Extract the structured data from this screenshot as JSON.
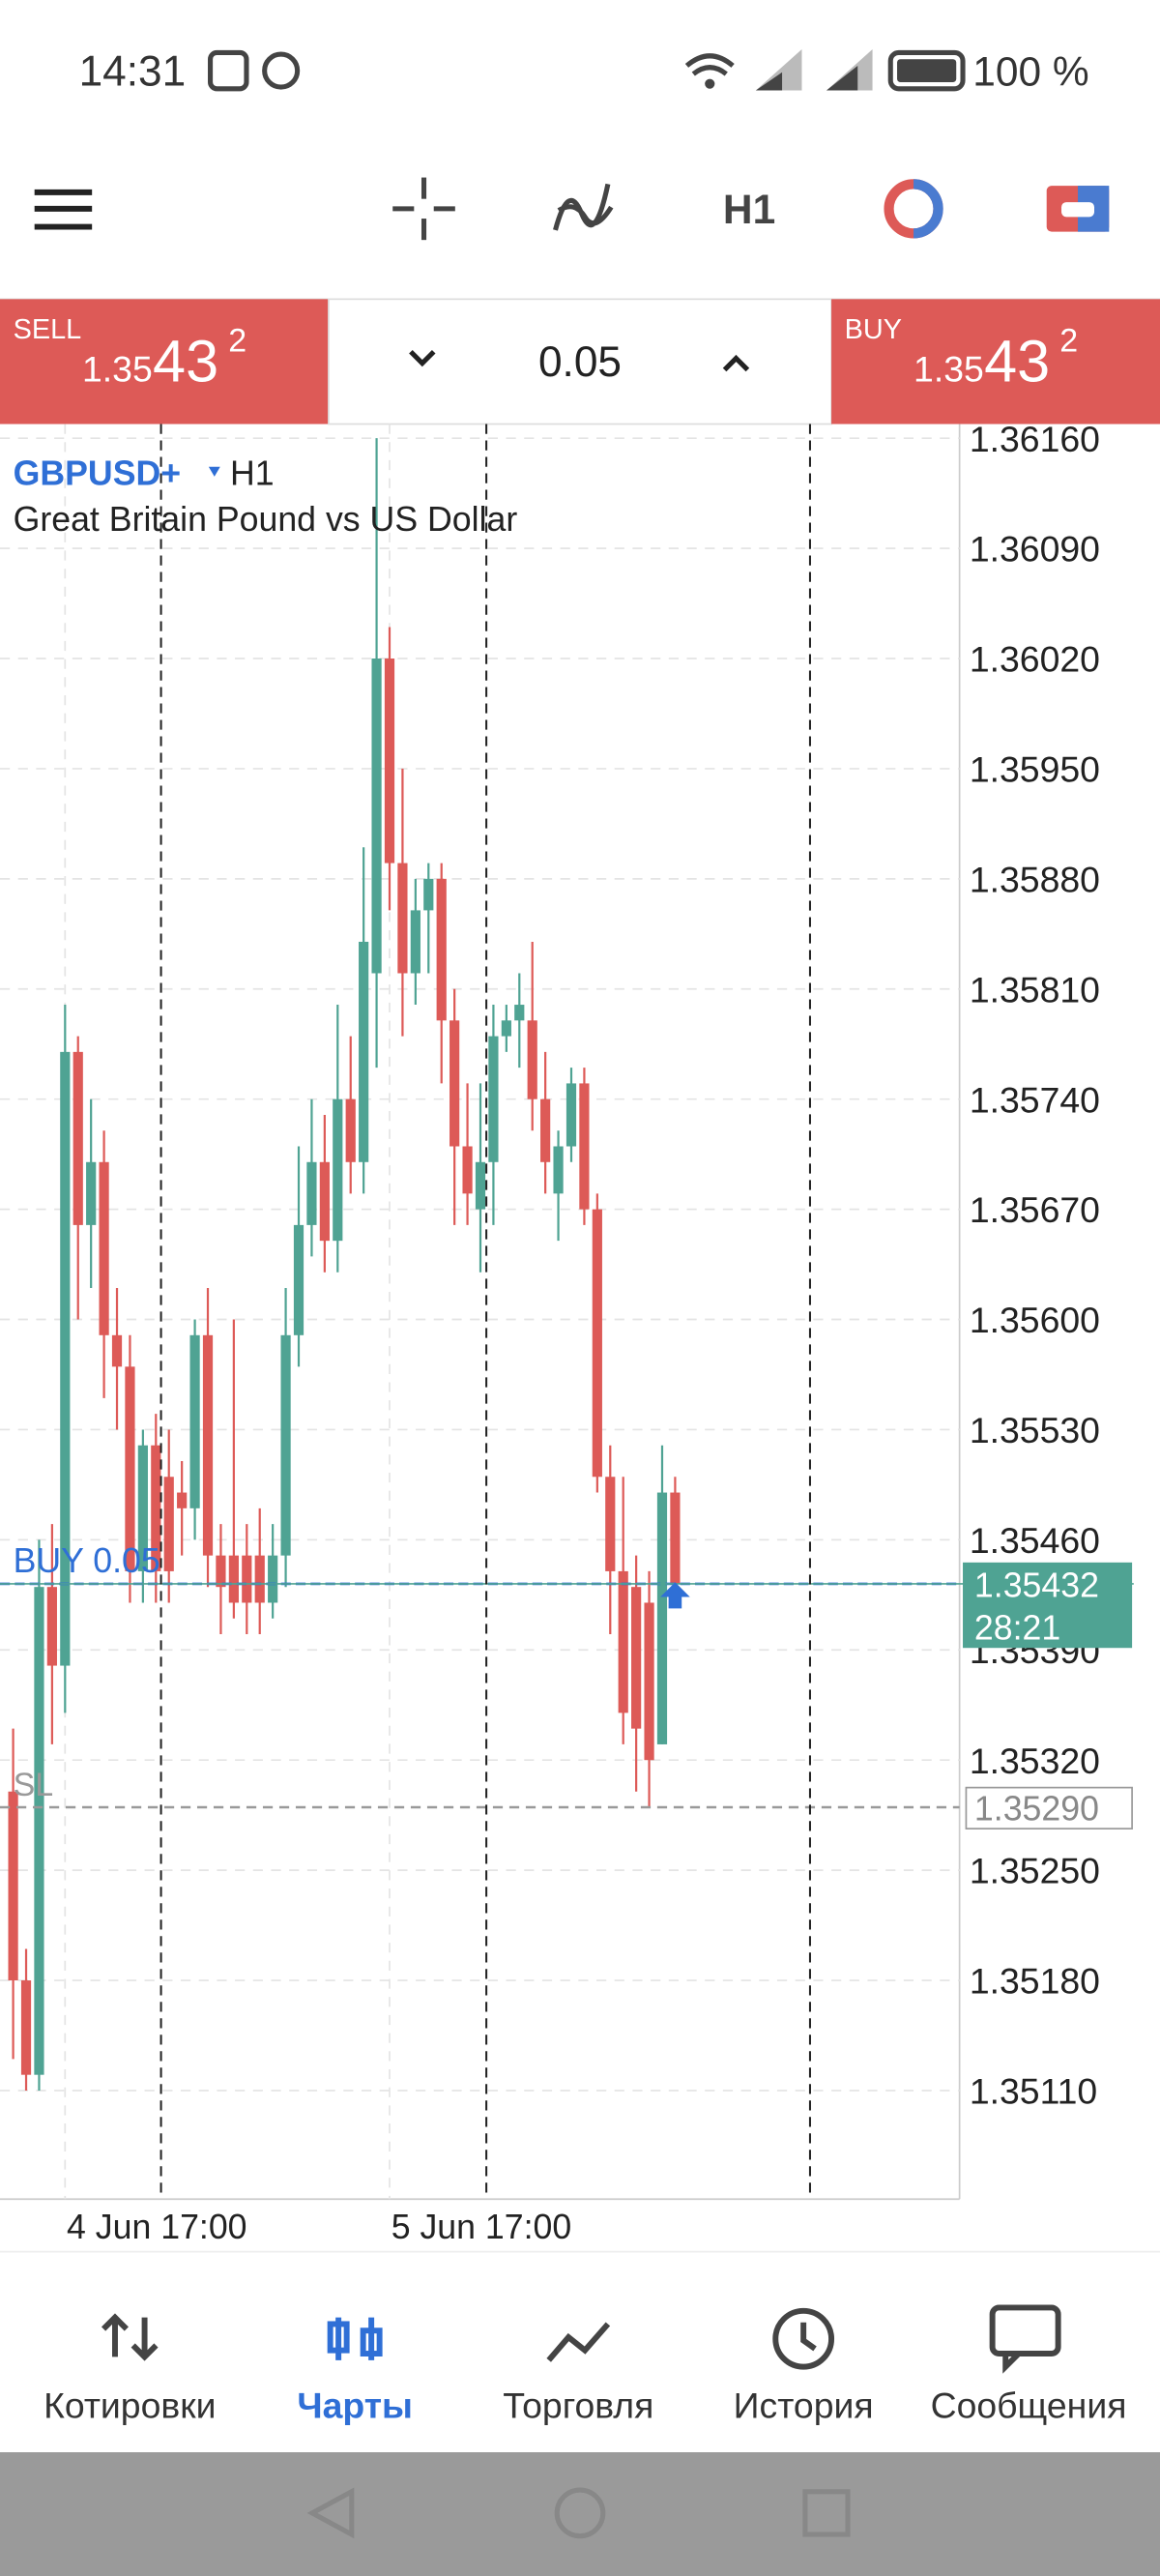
{
  "status_bar": {
    "time": "14:31",
    "battery": "100 %"
  },
  "toolbar": {
    "timeframe": "H1"
  },
  "trade_panel": {
    "sell_label": "SELL",
    "sell_price": {
      "small": "1.35",
      "big": "43",
      "sup": "2"
    },
    "volume": "0.05",
    "buy_label": "BUY",
    "buy_price": {
      "small": "1.35",
      "big": "43",
      "sup": "2"
    }
  },
  "chart": {
    "type": "candlestick",
    "symbol": "GBPUSD+",
    "timeframe": "H1",
    "description": "Great Britain Pound vs US Dollar",
    "up_color": "#4fa393",
    "down_color": "#dd5a57",
    "ylim": [
      1.35041,
      1.36169
    ],
    "yticks": [
      {
        "value": 1.3616,
        "label": "1.36160"
      },
      {
        "value": 1.3609,
        "label": "1.36090"
      },
      {
        "value": 1.3602,
        "label": "1.36020"
      },
      {
        "value": 1.3595,
        "label": "1.35950"
      },
      {
        "value": 1.3588,
        "label": "1.35880"
      },
      {
        "value": 1.3581,
        "label": "1.35810"
      },
      {
        "value": 1.3574,
        "label": "1.35740"
      },
      {
        "value": 1.3567,
        "label": "1.35670"
      },
      {
        "value": 1.356,
        "label": "1.35600"
      },
      {
        "value": 1.3553,
        "label": "1.35530"
      },
      {
        "value": 1.3546,
        "label": "1.35460"
      },
      {
        "value": 1.3539,
        "label": "1.35390"
      },
      {
        "value": 1.3532,
        "label": "1.35320"
      },
      {
        "value": 1.3525,
        "label": "1.35250"
      },
      {
        "value": 1.3518,
        "label": "1.35180"
      },
      {
        "value": 1.3511,
        "label": "1.35110"
      }
    ],
    "categories": [
      null,
      null,
      null,
      null,
      "4 Jun 17:00",
      null,
      null,
      null,
      null,
      null,
      null,
      null,
      null,
      null,
      null,
      null,
      null,
      null,
      null,
      null,
      null,
      null,
      null,
      null,
      null,
      null,
      null,
      null,
      null,
      "5 Jun 17:00",
      null,
      null,
      null,
      null,
      null,
      null,
      null,
      null,
      null,
      null,
      null,
      null,
      null,
      null,
      null,
      null,
      null,
      null,
      null,
      null,
      null,
      null
    ],
    "open": [
      1.353,
      1.3518,
      1.3512,
      1.3543,
      1.3538,
      1.3577,
      1.3566,
      1.357,
      1.3559,
      1.3557,
      1.3544,
      1.3552,
      1.355,
      1.3549,
      1.3548,
      1.3559,
      1.3545,
      1.3545,
      1.3545,
      1.3545,
      1.3542,
      1.3545,
      1.3559,
      1.3566,
      1.357,
      1.3565,
      1.3574,
      1.357,
      1.3582,
      1.3602,
      1.3589,
      1.3582,
      1.3586,
      1.3588,
      1.3579,
      1.3571,
      1.3567,
      1.357,
      1.3578,
      1.3579,
      1.3579,
      1.3574,
      1.3568,
      1.3571,
      1.3575,
      1.3567,
      1.355,
      1.3544,
      1.3543,
      1.3542,
      1.3533,
      1.3549
    ],
    "high": [
      1.3534,
      1.352,
      1.3546,
      1.3547,
      1.358,
      1.3578,
      1.3574,
      1.3572,
      1.3562,
      1.3559,
      1.3553,
      1.3554,
      1.3553,
      1.3551,
      1.356,
      1.3562,
      1.3547,
      1.356,
      1.3547,
      1.3548,
      1.3547,
      1.3562,
      1.3571,
      1.3574,
      1.3573,
      1.358,
      1.3578,
      1.359,
      1.3616,
      1.3604,
      1.3595,
      1.3588,
      1.3589,
      1.3589,
      1.3581,
      1.3575,
      1.3575,
      1.358,
      1.358,
      1.3582,
      1.3584,
      1.3577,
      1.3572,
      1.3576,
      1.3576,
      1.3568,
      1.3552,
      1.355,
      1.3545,
      1.3544,
      1.3552,
      1.355
    ],
    "low": [
      1.3513,
      1.3511,
      1.3511,
      1.3533,
      1.3535,
      1.356,
      1.3562,
      1.3555,
      1.3553,
      1.3542,
      1.3542,
      1.3542,
      1.3542,
      1.3545,
      1.3546,
      1.3543,
      1.354,
      1.3541,
      1.354,
      1.354,
      1.3541,
      1.3543,
      1.3557,
      1.3564,
      1.3563,
      1.3563,
      1.3568,
      1.3568,
      1.3576,
      1.3586,
      1.3578,
      1.358,
      1.3582,
      1.3575,
      1.3566,
      1.3566,
      1.3563,
      1.3566,
      1.3577,
      1.3576,
      1.3572,
      1.3568,
      1.3565,
      1.357,
      1.3566,
      1.3549,
      1.354,
      1.3533,
      1.353,
      1.3529,
      1.3533,
      1.3542
    ],
    "close": [
      1.3518,
      1.3512,
      1.3543,
      1.3538,
      1.3577,
      1.3566,
      1.357,
      1.3559,
      1.3557,
      1.3544,
      1.3552,
      1.3544,
      1.3544,
      1.3548,
      1.3559,
      1.3545,
      1.3543,
      1.3542,
      1.3542,
      1.3542,
      1.3545,
      1.3559,
      1.3566,
      1.357,
      1.3565,
      1.3574,
      1.357,
      1.3584,
      1.3602,
      1.3589,
      1.3582,
      1.3586,
      1.3588,
      1.3579,
      1.3571,
      1.3568,
      1.357,
      1.3578,
      1.3579,
      1.358,
      1.3574,
      1.357,
      1.3571,
      1.3575,
      1.3567,
      1.355,
      1.3544,
      1.3535,
      1.3534,
      1.3532,
      1.3549,
      1.35432
    ],
    "position": {
      "label": "BUY 0.05",
      "price": 1.35432
    },
    "current_price": 1.35432,
    "timer": "28:21",
    "stop_loss": {
      "label": "SL",
      "price": {
        "value": 1.3529,
        "label": "1.35290"
      }
    }
  },
  "bottom_nav": {
    "items": [
      "Котировки",
      "Чарты",
      "Торговля",
      "История",
      "Сообщения"
    ],
    "active": "Чарты"
  }
}
